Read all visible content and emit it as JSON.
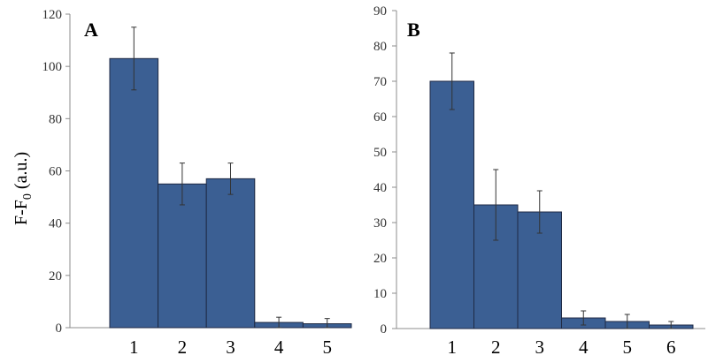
{
  "chart_data": [
    {
      "type": "bar",
      "panel_label": "A",
      "ylabel": "F-F",
      "ylabel_sub": "0",
      "ylabel_suffix": " (a.u.)",
      "ylim": [
        0,
        120
      ],
      "yticks": [
        "0",
        "20",
        "40",
        "60",
        "80",
        "100",
        "120"
      ],
      "categories": [
        "1",
        "2",
        "3",
        "4",
        "5"
      ],
      "values": [
        103,
        55,
        57,
        2,
        1.5
      ],
      "errors": [
        12,
        8,
        6,
        2,
        2
      ],
      "grid": false,
      "bar_color": "#3b5f93"
    },
    {
      "type": "bar",
      "panel_label": "B",
      "ylim": [
        0,
        90
      ],
      "yticks": [
        "0",
        "10",
        "20",
        "30",
        "40",
        "50",
        "60",
        "70",
        "80",
        "90"
      ],
      "categories": [
        "1",
        "2",
        "3",
        "4",
        "5",
        "6"
      ],
      "values": [
        70,
        35,
        33,
        3,
        2,
        1
      ],
      "errors": [
        8,
        10,
        6,
        2,
        2,
        1
      ],
      "grid": false,
      "bar_color": "#3b5f93"
    }
  ]
}
